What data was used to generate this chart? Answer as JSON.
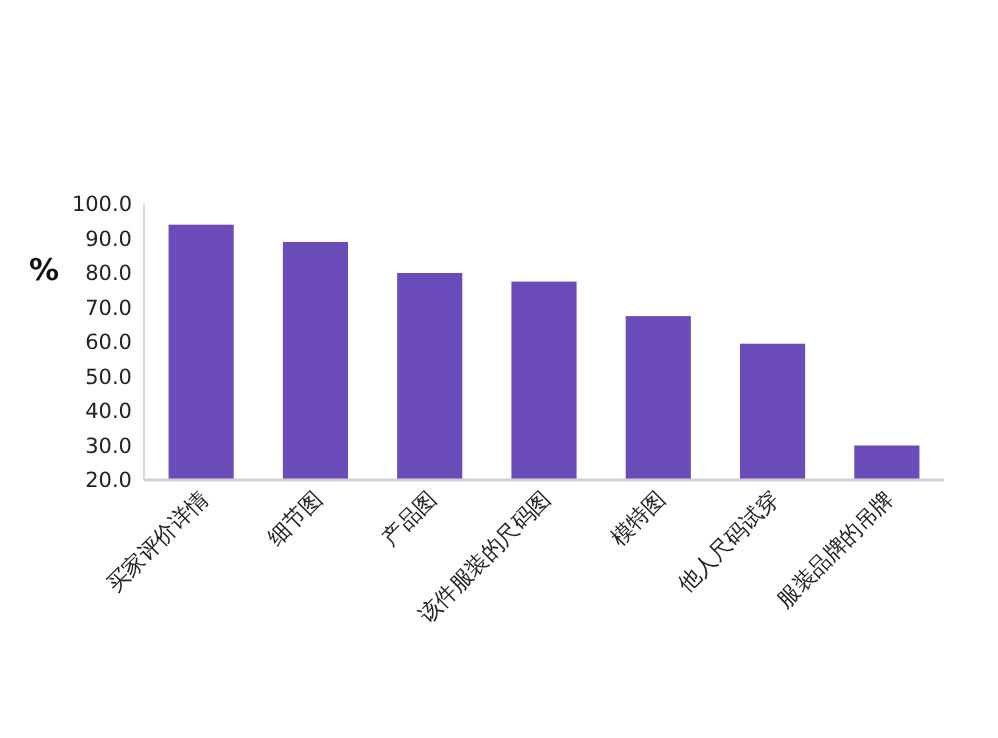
{
  "chart_data": {
    "type": "bar",
    "ylabel": "%",
    "categories": [
      "买家评价详情",
      "细节图",
      "产品图",
      "该件服装的尺码图",
      "模特图",
      "他人尺码试穿",
      "服装品牌的吊牌"
    ],
    "values": [
      94,
      89,
      80,
      77.5,
      67.5,
      59.5,
      30
    ],
    "color": "#6a4bb8",
    "ylim": [
      20,
      100
    ],
    "yticks": [
      {
        "value": 20,
        "label": "20.0"
      },
      {
        "value": 30,
        "label": "30.0"
      },
      {
        "value": 40,
        "label": "40.0"
      },
      {
        "value": 50,
        "label": "50.0"
      },
      {
        "value": 60,
        "label": "60.0"
      },
      {
        "value": 70,
        "label": "70.0"
      },
      {
        "value": 80,
        "label": "80.0"
      },
      {
        "value": 90,
        "label": "90.0"
      },
      {
        "value": 100,
        "label": "100.0"
      }
    ],
    "grid": false
  }
}
